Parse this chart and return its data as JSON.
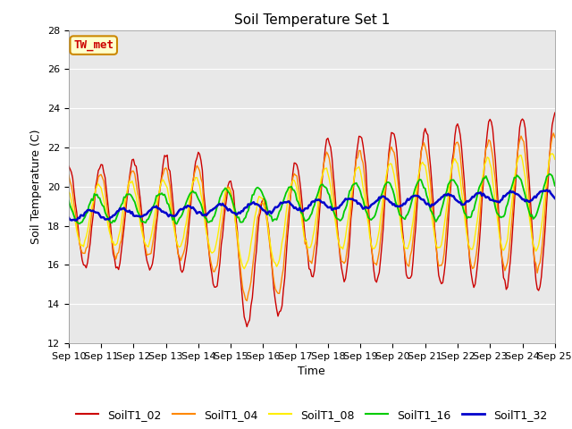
{
  "title": "Soil Temperature Set 1",
  "xlabel": "Time",
  "ylabel": "Soil Temperature (C)",
  "ylim": [
    12,
    28
  ],
  "xlim": [
    0,
    360
  ],
  "annotation": "TW_met",
  "series_colors": {
    "SoilT1_02": "#cc0000",
    "SoilT1_04": "#ff8800",
    "SoilT1_08": "#ffee00",
    "SoilT1_16": "#00cc00",
    "SoilT1_32": "#0000cc"
  },
  "series_names": [
    "SoilT1_02",
    "SoilT1_04",
    "SoilT1_08",
    "SoilT1_16",
    "SoilT1_32"
  ],
  "xtick_labels": [
    "Sep 10",
    "Sep 11",
    "Sep 12",
    "Sep 13",
    "Sep 14",
    "Sep 15",
    "Sep 16",
    "Sep 17",
    "Sep 18",
    "Sep 19",
    "Sep 20",
    "Sep 21",
    "Sep 22",
    "Sep 23",
    "Sep 24",
    "Sep 25"
  ],
  "xtick_positions": [
    0,
    24,
    48,
    72,
    96,
    120,
    144,
    168,
    192,
    216,
    240,
    264,
    288,
    312,
    336,
    360
  ],
  "ytick_positions": [
    12,
    14,
    16,
    18,
    20,
    22,
    24,
    26,
    28
  ],
  "fig_bg": "#ffffff",
  "plot_bg": "#e8e8e8",
  "title_fontsize": 11,
  "axis_fontsize": 9,
  "tick_fontsize": 8,
  "legend_fontsize": 9
}
